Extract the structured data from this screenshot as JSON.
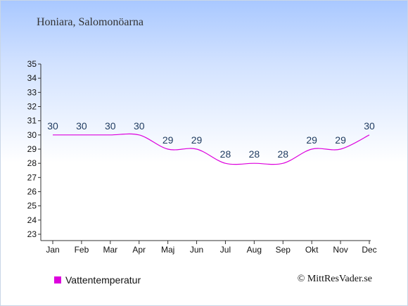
{
  "location_title": "Honiara, Salomonöarna",
  "copyright": "© MittResVader.se",
  "colors": {
    "series": "#dd00dd",
    "axis": "#333333",
    "label": "#1e3a5f",
    "bg_top": "#a9c8ff"
  },
  "chart_data": {
    "type": "line",
    "categories": [
      "Jan",
      "Feb",
      "Mar",
      "Apr",
      "Maj",
      "Jun",
      "Jul",
      "Aug",
      "Sep",
      "Okt",
      "Nov",
      "Dec"
    ],
    "series": [
      {
        "name": "Vattentemperatur",
        "values": [
          30,
          30,
          30,
          30,
          29,
          29,
          28,
          28,
          28,
          29,
          29,
          30
        ]
      }
    ],
    "data_labels": [
      "30",
      "30",
      "30",
      "30",
      "29",
      "29",
      "28",
      "28",
      "28",
      "29",
      "29",
      "30"
    ],
    "ylim": [
      23,
      35
    ],
    "yticks": [
      23,
      24,
      25,
      26,
      27,
      28,
      29,
      30,
      31,
      32,
      33,
      34,
      35
    ],
    "grid": false,
    "legend_position": "bottom-left"
  }
}
